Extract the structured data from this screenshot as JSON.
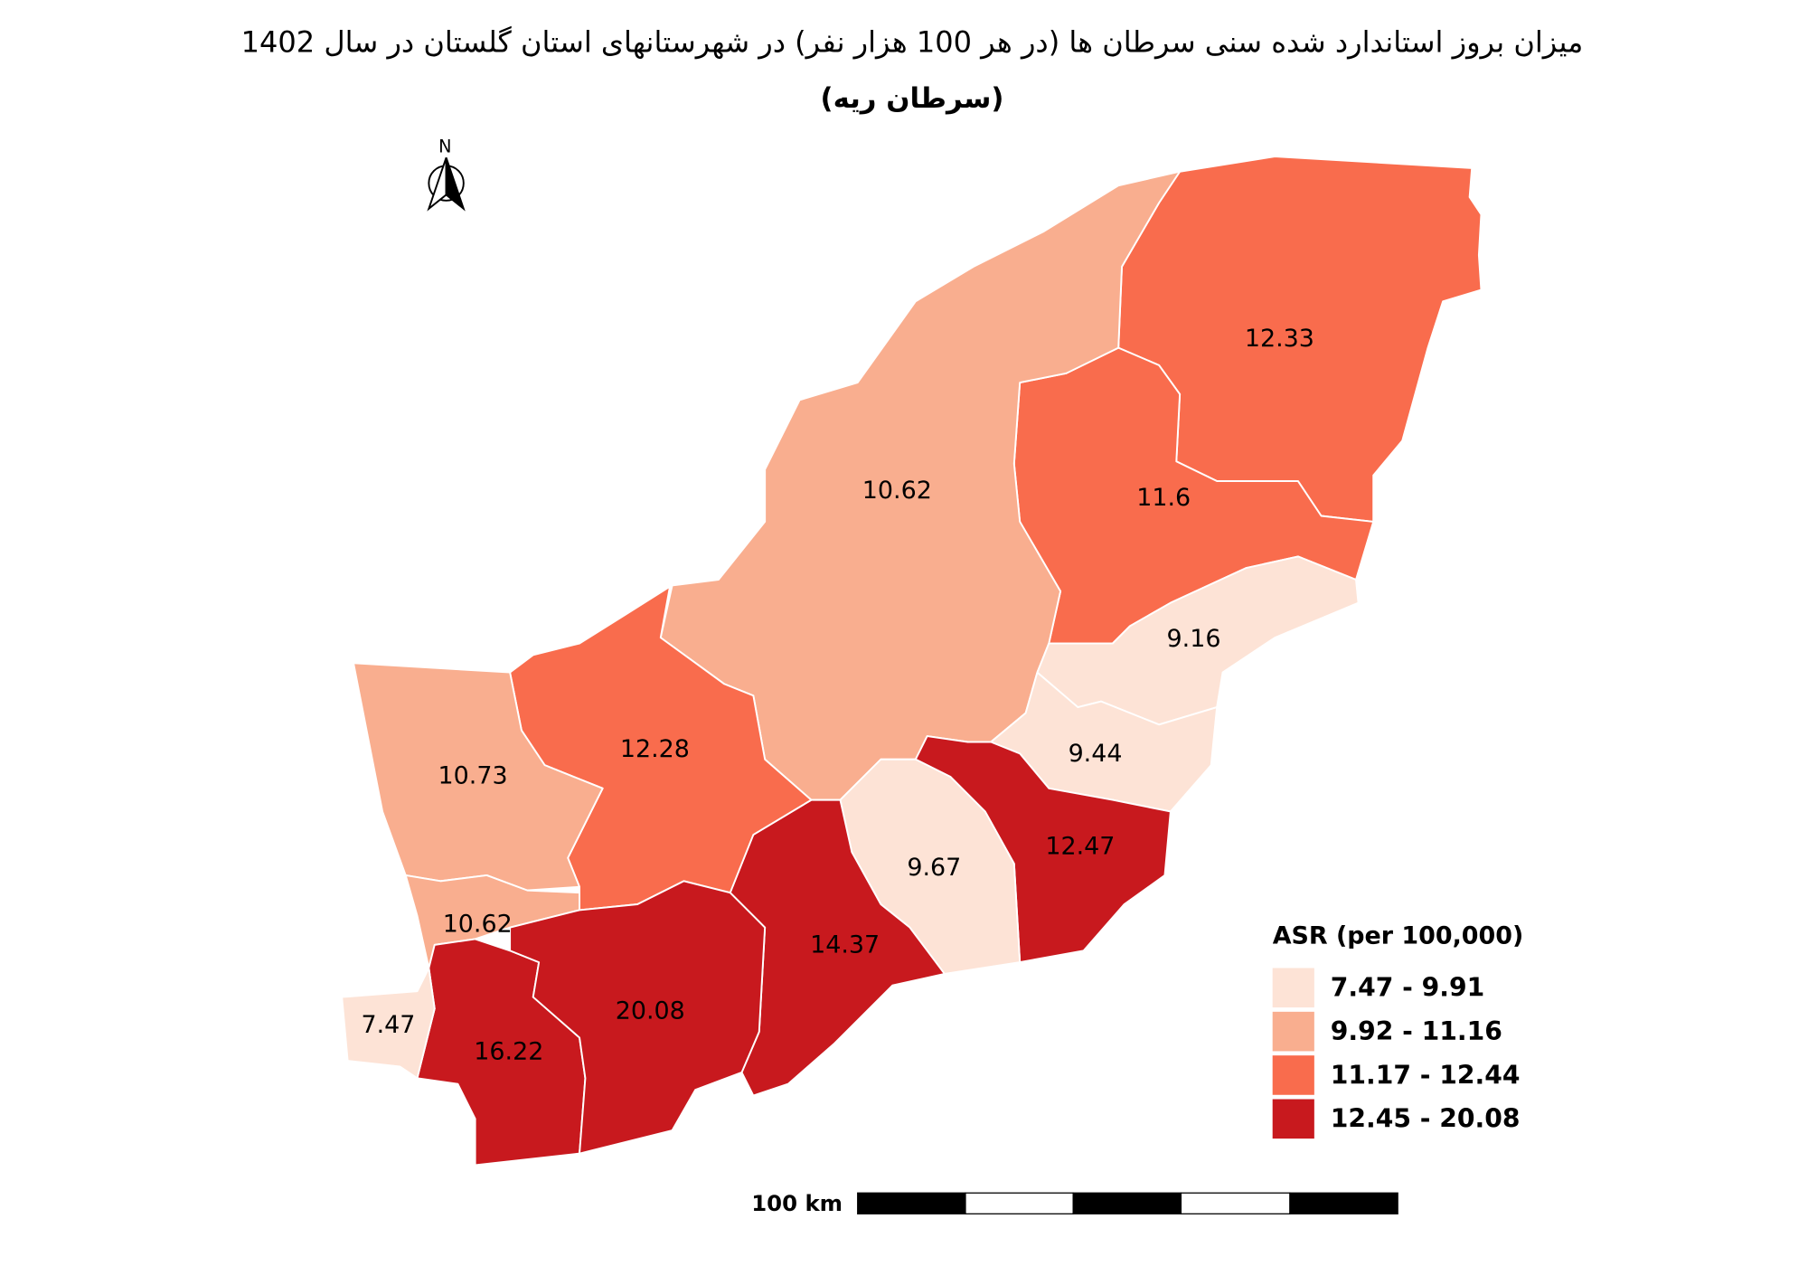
{
  "title": "میزان بروز استاندارد شده سنی سرطان ها (در هر 100 هزار نفر) در شهرستانهای استان گلستان در سال 1402",
  "subtitle": "(سرطان ریه)",
  "north": "N",
  "scale_bar": "100 km",
  "legend": {
    "title": "ASR (per 100,000)",
    "classes": [
      {
        "min": 7.47,
        "max": 9.91,
        "label": "7.47 - 9.91",
        "color": "#fde3d6"
      },
      {
        "min": 9.92,
        "max": 11.16,
        "label": "9.92 - 11.16",
        "color": "#f9ae8f"
      },
      {
        "min": 11.17,
        "max": 12.44,
        "label": "11.17 - 12.44",
        "color": "#f96c4d"
      },
      {
        "min": 12.45,
        "max": 20.08,
        "label": "12.45 - 20.08",
        "color": "#c8191e"
      }
    ]
  },
  "regions": [
    {
      "value": 12.33
    },
    {
      "value": 11.6
    },
    {
      "value": 10.62
    },
    {
      "value": 9.16
    },
    {
      "value": 9.44
    },
    {
      "value": 12.47
    },
    {
      "value": 9.67
    },
    {
      "value": 14.37
    },
    {
      "value": 12.28
    },
    {
      "value": 10.73
    },
    {
      "value": 10.62
    },
    {
      "value": 16.22
    },
    {
      "value": 20.08
    },
    {
      "value": 7.47
    }
  ]
}
